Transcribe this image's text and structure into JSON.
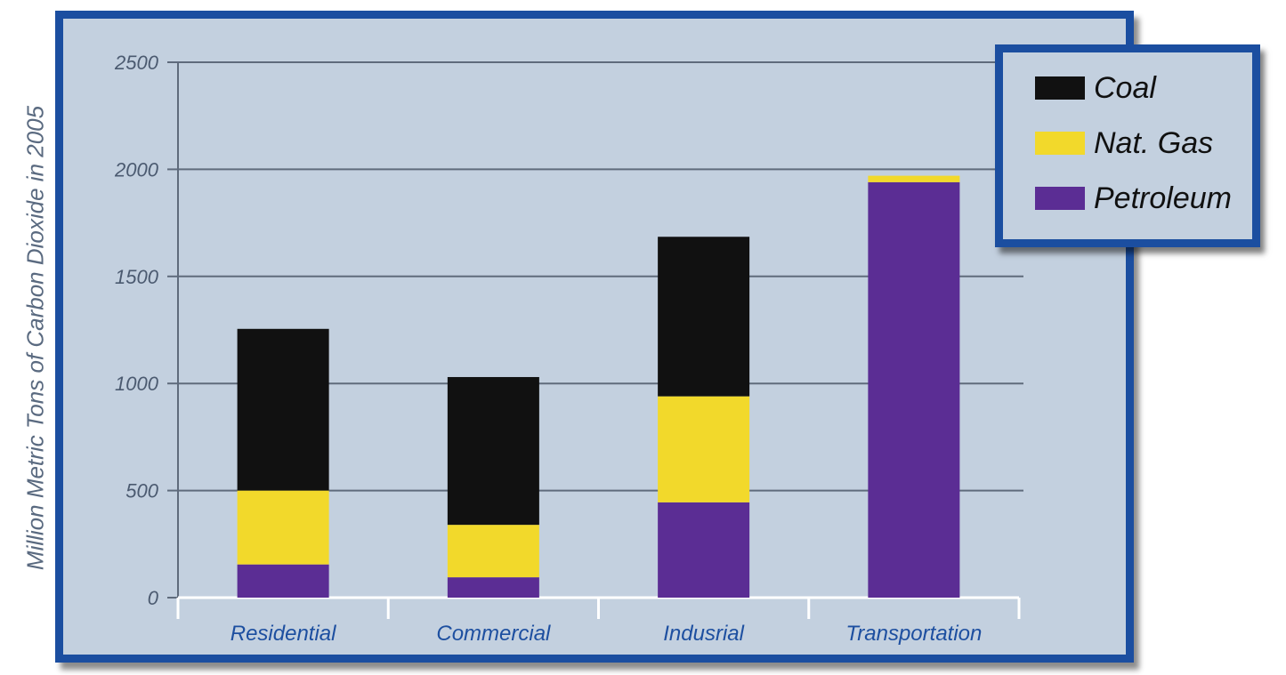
{
  "chart_data": {
    "type": "bar",
    "stacked": true,
    "ylabel": "Million Metric Tons of Carbon Dioxide in 2005",
    "xlabel": "",
    "ylim": [
      0,
      2500
    ],
    "yticks": [
      0,
      500,
      1000,
      1500,
      2000,
      2500
    ],
    "grid": true,
    "legend_position": "top-right",
    "categories": [
      "Residential",
      "Commercial",
      "Indusrial",
      "Transportation"
    ],
    "series": [
      {
        "name": "Petroleum",
        "color": "#5b2d94",
        "values": [
          155,
          95,
          445,
          1940
        ]
      },
      {
        "name": "Nat. Gas",
        "color": "#f2d92b",
        "values": [
          345,
          245,
          495,
          30
        ]
      },
      {
        "name": "Coal",
        "color": "#111111",
        "values": [
          755,
          690,
          745,
          0
        ]
      }
    ],
    "legend_order": [
      "Coal",
      "Nat. Gas",
      "Petroleum"
    ]
  }
}
